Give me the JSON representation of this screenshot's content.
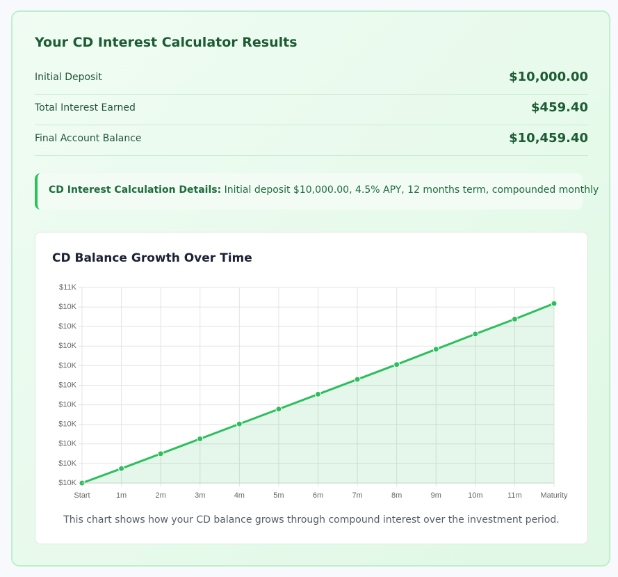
{
  "results": {
    "title": "Your CD Interest Calculator Results",
    "rows": [
      {
        "label": "Initial Deposit",
        "value": "$10,000.00"
      },
      {
        "label": "Total Interest Earned",
        "value": "$459.40"
      },
      {
        "label": "Final Account Balance",
        "value": "$10,459.40"
      }
    ]
  },
  "details": {
    "label": "CD Interest Calculation Details:",
    "text": "Initial deposit $10,000.00, 4.5% APY, 12 months term, compounded monthly"
  },
  "chart_data": {
    "type": "line",
    "title": "CD Balance Growth Over Time",
    "categories": [
      "Start",
      "1m",
      "2m",
      "3m",
      "4m",
      "5m",
      "6m",
      "7m",
      "8m",
      "9m",
      "10m",
      "11m",
      "Maturity"
    ],
    "values": [
      10000,
      10037,
      10075,
      10113,
      10151,
      10189,
      10227,
      10265,
      10303,
      10342,
      10381,
      10419,
      10459
    ],
    "color": "#2cbf5c",
    "ylim": [
      10000,
      10500
    ],
    "yticks": [
      {
        "value": 10000,
        "label": "$10K"
      },
      {
        "value": 10050,
        "label": "$10K"
      },
      {
        "value": 10100,
        "label": "$10K"
      },
      {
        "value": 10150,
        "label": "$10K"
      },
      {
        "value": 10200,
        "label": "$10K"
      },
      {
        "value": 10250,
        "label": "$10K"
      },
      {
        "value": 10300,
        "label": "$10K"
      },
      {
        "value": 10350,
        "label": "$10K"
      },
      {
        "value": 10400,
        "label": "$10K"
      },
      {
        "value": 10450,
        "label": "$10K"
      },
      {
        "value": 10500,
        "label": "$11K"
      }
    ],
    "grid": true,
    "fill": true
  },
  "caption": "This chart shows how your CD balance grows through compound interest over the investment period."
}
